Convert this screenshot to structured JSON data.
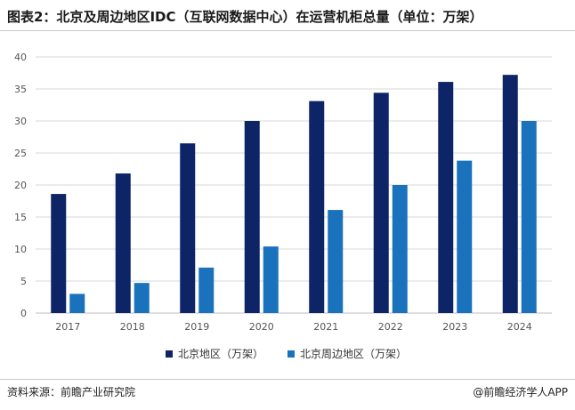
{
  "title": "图表2：北京及周边地区IDC（互联网数据中心）在运营机柜总量（单位：万架）",
  "source": "资料来源：前瞻产业研究院",
  "brand": "@前瞻经济学人APP",
  "colors": {
    "series_1": "#0d2466",
    "series_2": "#1a72bd",
    "grid": "#d9d9d9",
    "axis": "#bfbfbf"
  },
  "chart_data": {
    "type": "bar",
    "title": "",
    "xlabel": "",
    "ylabel": "",
    "categories": [
      "2017",
      "2018",
      "2019",
      "2020",
      "2021",
      "2022",
      "2023",
      "2024"
    ],
    "ylim": [
      0,
      40
    ],
    "yticks": [
      0,
      5,
      10,
      15,
      20,
      25,
      30,
      35,
      40
    ],
    "grid": true,
    "legend": "bottom",
    "series": [
      {
        "name": "北京地区（万架）",
        "values": [
          18.6,
          21.8,
          26.5,
          30.0,
          33.1,
          34.4,
          36.1,
          37.2
        ]
      },
      {
        "name": "北京周边地区（万架）",
        "values": [
          3.0,
          4.7,
          7.1,
          10.4,
          16.1,
          20.0,
          23.8,
          30.0
        ]
      }
    ]
  }
}
